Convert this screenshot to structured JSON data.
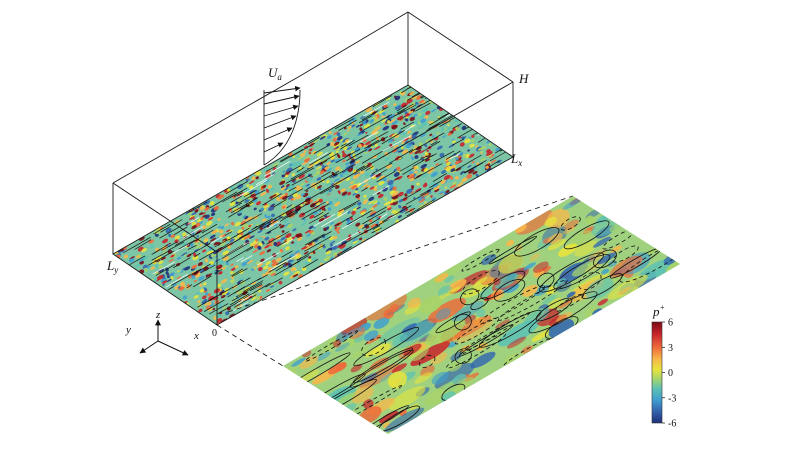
{
  "labels": {
    "velocity": "U",
    "velocity_sub": "a",
    "height": "H",
    "length_x": "L",
    "length_x_sub": "x",
    "length_y": "L",
    "length_y_sub": "y",
    "origin": "0",
    "axis_x": "x",
    "axis_y": "y",
    "axis_z": "z"
  },
  "colorbar": {
    "title": "p",
    "title_sup": "+",
    "ticks": [
      "6",
      "3",
      "0",
      "-3",
      "-6"
    ],
    "max": 6,
    "min": -6,
    "colors": [
      "#7a0c16",
      "#c8242c",
      "#ee6a3a",
      "#f8b84a",
      "#e8e43c",
      "#a8d468",
      "#5cc2b4",
      "#3f9fd0",
      "#3366b0",
      "#1f2f7a"
    ]
  }
}
